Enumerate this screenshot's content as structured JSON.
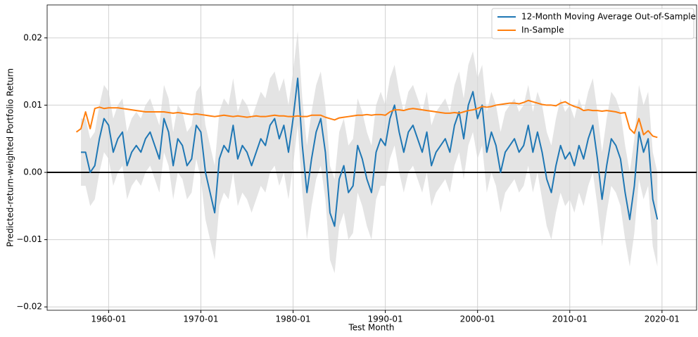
{
  "chart_data": {
    "type": "line",
    "xlabel": "Test Month",
    "ylabel": "Predicted-return-weighted Portfolio Return",
    "xlim": [
      "1953-05",
      "2023-10"
    ],
    "ylim": [
      -0.0205,
      0.0249
    ],
    "xticks": [
      "1960-01",
      "1970-01",
      "1980-01",
      "1990-01",
      "2000-01",
      "2010-01",
      "2020-01"
    ],
    "yticks": [
      {
        "value": -0.02,
        "label": "−0.02"
      },
      {
        "value": -0.01,
        "label": "−0.01"
      },
      {
        "value": 0,
        "label": "0.00"
      },
      0.01,
      0.02
    ],
    "grid": true,
    "legend": "upper right",
    "hline": 0,
    "x": [
      "1956-07",
      "1957-01",
      "1957-07",
      "1958-01",
      "1958-07",
      "1959-01",
      "1959-07",
      "1960-01",
      "1960-07",
      "1961-01",
      "1961-07",
      "1962-01",
      "1962-07",
      "1963-01",
      "1963-07",
      "1964-01",
      "1964-07",
      "1965-01",
      "1965-07",
      "1966-01",
      "1966-07",
      "1967-01",
      "1967-07",
      "1968-01",
      "1968-07",
      "1969-01",
      "1969-07",
      "1970-01",
      "1970-07",
      "1971-01",
      "1971-07",
      "1972-01",
      "1972-07",
      "1973-01",
      "1973-07",
      "1974-01",
      "1974-07",
      "1975-01",
      "1975-07",
      "1976-01",
      "1976-07",
      "1977-01",
      "1977-07",
      "1978-01",
      "1978-07",
      "1979-01",
      "1979-07",
      "1980-01",
      "1980-07",
      "1981-01",
      "1981-07",
      "1982-01",
      "1982-07",
      "1983-01",
      "1983-07",
      "1984-01",
      "1984-07",
      "1985-01",
      "1985-07",
      "1986-01",
      "1986-07",
      "1987-01",
      "1987-07",
      "1988-01",
      "1988-07",
      "1989-01",
      "1989-07",
      "1990-01",
      "1990-07",
      "1991-01",
      "1991-07",
      "1992-01",
      "1992-07",
      "1993-01",
      "1993-07",
      "1994-01",
      "1994-07",
      "1995-01",
      "1995-07",
      "1996-01",
      "1996-07",
      "1997-01",
      "1997-07",
      "1998-01",
      "1998-07",
      "1999-01",
      "1999-07",
      "2000-01",
      "2000-07",
      "2001-01",
      "2001-07",
      "2002-01",
      "2002-07",
      "2003-01",
      "2003-07",
      "2004-01",
      "2004-07",
      "2005-01",
      "2005-07",
      "2006-01",
      "2006-07",
      "2007-01",
      "2007-07",
      "2008-01",
      "2008-07",
      "2009-01",
      "2009-07",
      "2010-01",
      "2010-07",
      "2011-01",
      "2011-07",
      "2012-01",
      "2012-07",
      "2013-01",
      "2013-07",
      "2014-01",
      "2014-07",
      "2015-01",
      "2015-07",
      "2016-01",
      "2016-07",
      "2017-01",
      "2017-07",
      "2018-01",
      "2018-07",
      "2019-01",
      "2019-07"
    ],
    "band": {
      "color": "#d9d9d9",
      "upper": [
        null,
        0.008,
        0.008,
        0.005,
        0.006,
        0.01,
        0.013,
        0.012,
        0.008,
        0.01,
        0.011,
        0.006,
        0.008,
        0.009,
        0.008,
        0.01,
        0.011,
        0.009,
        0.007,
        0.013,
        0.011,
        0.006,
        0.01,
        0.009,
        0.006,
        0.007,
        0.012,
        0.013,
        0.007,
        0.004,
        0.001,
        0.009,
        0.011,
        0.01,
        0.014,
        0.009,
        0.011,
        0.01,
        0.008,
        0.01,
        0.012,
        0.011,
        0.014,
        0.015,
        0.012,
        0.014,
        0.01,
        0.015,
        0.021,
        0.011,
        0.004,
        0.009,
        0.013,
        0.015,
        0.01,
        0.001,
        -0.001,
        0.006,
        0.008,
        0.004,
        0.005,
        0.011,
        0.009,
        0.006,
        0.004,
        0.01,
        0.012,
        0.01,
        0.014,
        0.016,
        0.012,
        0.009,
        0.012,
        0.013,
        0.011,
        0.009,
        0.012,
        0.007,
        0.009,
        0.01,
        0.011,
        0.009,
        0.013,
        0.015,
        0.011,
        0.016,
        0.018,
        0.014,
        0.016,
        0.009,
        0.012,
        0.01,
        0.006,
        0.009,
        0.01,
        0.011,
        0.009,
        0.01,
        0.013,
        0.009,
        0.012,
        0.01,
        0.006,
        0.004,
        0.008,
        0.011,
        0.009,
        0.01,
        0.008,
        0.011,
        0.009,
        0.012,
        0.014,
        0.009,
        0.003,
        0.008,
        0.012,
        0.011,
        0.009,
        0.004,
        0.0,
        0.005,
        0.013,
        0.01,
        0.012,
        0.003,
        0.0
      ],
      "lower": [
        null,
        -0.002,
        -0.002,
        -0.005,
        -0.004,
        0.0,
        0.003,
        0.002,
        -0.002,
        0.0,
        0.001,
        -0.004,
        -0.002,
        -0.001,
        -0.002,
        0.0,
        0.001,
        -0.001,
        -0.003,
        0.003,
        0.001,
        -0.004,
        0.0,
        -0.001,
        -0.004,
        -0.003,
        0.002,
        -0.001,
        -0.007,
        -0.01,
        -0.013,
        -0.005,
        -0.003,
        -0.004,
        0.0,
        -0.005,
        -0.003,
        -0.004,
        -0.006,
        -0.004,
        -0.002,
        -0.003,
        0.0,
        0.001,
        -0.002,
        0.0,
        -0.004,
        0.001,
        0.007,
        -0.003,
        -0.01,
        -0.005,
        -0.001,
        0.001,
        -0.004,
        -0.013,
        -0.015,
        -0.008,
        -0.006,
        -0.01,
        -0.009,
        -0.003,
        -0.005,
        -0.008,
        -0.01,
        -0.004,
        -0.002,
        -0.002,
        0.002,
        0.004,
        0.0,
        -0.003,
        0.0,
        0.001,
        -0.001,
        -0.003,
        0.0,
        -0.005,
        -0.003,
        -0.002,
        -0.001,
        -0.003,
        0.001,
        0.003,
        -0.001,
        0.004,
        0.006,
        0.002,
        0.004,
        -0.003,
        0.0,
        -0.002,
        -0.006,
        -0.003,
        -0.002,
        -0.001,
        -0.003,
        -0.002,
        0.001,
        -0.003,
        0.0,
        -0.004,
        -0.008,
        -0.01,
        -0.006,
        -0.003,
        -0.005,
        -0.004,
        -0.006,
        -0.003,
        -0.005,
        -0.002,
        0.0,
        -0.005,
        -0.011,
        -0.006,
        -0.002,
        -0.003,
        -0.005,
        -0.01,
        -0.014,
        -0.009,
        -0.001,
        -0.004,
        -0.002,
        -0.011,
        -0.014
      ]
    },
    "series": [
      {
        "name": "12-Month Moving Average Out-of-Sample",
        "color": "#1f77b4",
        "values": [
          null,
          0.003,
          0.003,
          0.0,
          0.001,
          0.005,
          0.008,
          0.007,
          0.003,
          0.005,
          0.006,
          0.001,
          0.003,
          0.004,
          0.003,
          0.005,
          0.006,
          0.004,
          0.002,
          0.008,
          0.006,
          0.001,
          0.005,
          0.004,
          0.001,
          0.002,
          0.007,
          0.006,
          0.0,
          -0.003,
          -0.006,
          0.002,
          0.004,
          0.003,
          0.007,
          0.002,
          0.004,
          0.003,
          0.001,
          0.003,
          0.005,
          0.004,
          0.007,
          0.008,
          0.005,
          0.007,
          0.003,
          0.008,
          0.014,
          0.004,
          -0.003,
          0.002,
          0.006,
          0.008,
          0.003,
          -0.006,
          -0.008,
          -0.001,
          0.001,
          -0.003,
          -0.002,
          0.004,
          0.002,
          -0.001,
          -0.003,
          0.003,
          0.005,
          0.004,
          0.008,
          0.01,
          0.006,
          0.003,
          0.006,
          0.007,
          0.005,
          0.003,
          0.006,
          0.001,
          0.003,
          0.004,
          0.005,
          0.003,
          0.007,
          0.009,
          0.005,
          0.01,
          0.012,
          0.008,
          0.01,
          0.003,
          0.006,
          0.004,
          0.0,
          0.003,
          0.004,
          0.005,
          0.003,
          0.004,
          0.007,
          0.003,
          0.006,
          0.003,
          -0.001,
          -0.003,
          0.001,
          0.004,
          0.002,
          0.003,
          0.001,
          0.004,
          0.002,
          0.005,
          0.007,
          0.002,
          -0.004,
          0.001,
          0.005,
          0.004,
          0.002,
          -0.003,
          -0.007,
          -0.002,
          0.006,
          0.003,
          0.005,
          -0.004,
          -0.007
        ]
      },
      {
        "name": "In-Sample",
        "color": "#ff7f0e",
        "values": [
          0.006,
          0.0065,
          0.009,
          0.0065,
          0.0095,
          0.0097,
          0.0095,
          0.0096,
          0.0096,
          0.0096,
          0.0095,
          0.0094,
          0.0093,
          0.0092,
          0.0091,
          0.009,
          0.009,
          0.009,
          0.009,
          0.009,
          0.0089,
          0.0088,
          0.0089,
          0.0088,
          0.0087,
          0.0086,
          0.0087,
          0.0086,
          0.0085,
          0.0084,
          0.0083,
          0.0084,
          0.0085,
          0.0084,
          0.0083,
          0.0084,
          0.0083,
          0.0082,
          0.0083,
          0.0084,
          0.0083,
          0.0083,
          0.0084,
          0.0085,
          0.0084,
          0.0084,
          0.0083,
          0.0083,
          0.0084,
          0.0083,
          0.0083,
          0.0085,
          0.0085,
          0.0085,
          0.0082,
          0.008,
          0.0078,
          0.0081,
          0.0082,
          0.0083,
          0.0084,
          0.0085,
          0.0085,
          0.0086,
          0.0085,
          0.0086,
          0.0086,
          0.0085,
          0.009,
          0.0093,
          0.0093,
          0.0092,
          0.0094,
          0.0095,
          0.0094,
          0.0093,
          0.0092,
          0.0091,
          0.009,
          0.0089,
          0.0088,
          0.0088,
          0.0089,
          0.0088,
          0.009,
          0.0092,
          0.0093,
          0.0095,
          0.0098,
          0.0097,
          0.0098,
          0.01,
          0.0101,
          0.0102,
          0.0103,
          0.0103,
          0.0102,
          0.0104,
          0.0107,
          0.0105,
          0.0103,
          0.0101,
          0.01,
          0.01,
          0.0099,
          0.0103,
          0.0105,
          0.0101,
          0.0098,
          0.0096,
          0.0092,
          0.0093,
          0.0092,
          0.0092,
          0.0091,
          0.0092,
          0.0091,
          0.009,
          0.0088,
          0.0089,
          0.0065,
          0.0058,
          0.008,
          0.0056,
          0.0062,
          0.0054,
          0.0052
        ]
      }
    ]
  }
}
